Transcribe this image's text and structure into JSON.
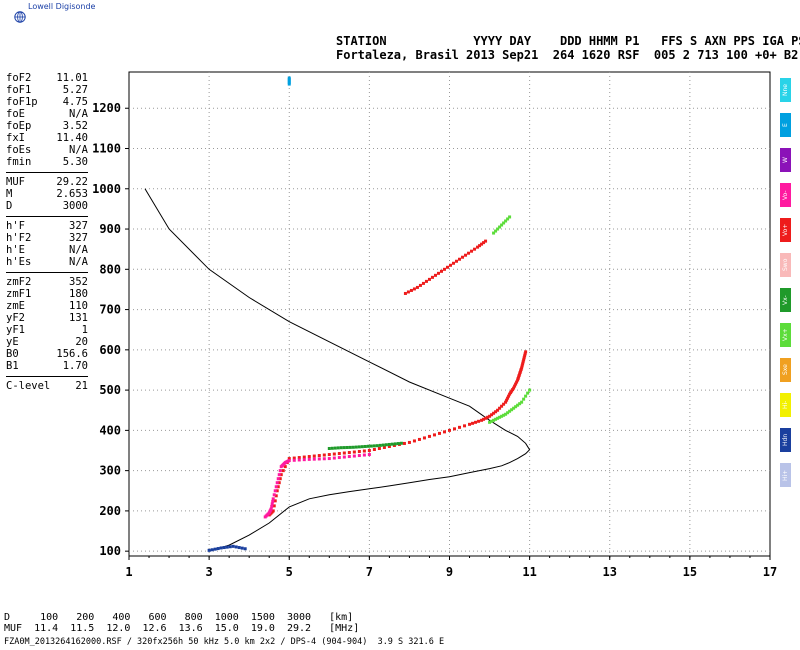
{
  "brand": "Lowell Digisonde",
  "header": {
    "line1": "STATION            YYYY DAY    DDD HHMM P1   FFS S AXN PPS IGA PS",
    "line2": "Fortaleza, Brasil 2013 Sep21  264 1620 RSF  005 2 713 100 +0+ B2"
  },
  "params": [
    [
      {
        "k": "foF2",
        "v": "11.01"
      },
      {
        "k": "foF1",
        "v": "5.27"
      },
      {
        "k": "foF1p",
        "v": "4.75"
      },
      {
        "k": "foE",
        "v": "N/A"
      },
      {
        "k": "foEp",
        "v": "3.52"
      },
      {
        "k": "fxI",
        "v": "11.40"
      },
      {
        "k": "foEs",
        "v": "N/A"
      },
      {
        "k": "fmin",
        "v": "5.30"
      }
    ],
    [
      {
        "k": "MUF",
        "v": "29.22"
      },
      {
        "k": "M",
        "v": "2.653"
      },
      {
        "k": "D",
        "v": "3000"
      }
    ],
    [
      {
        "k": "h'F",
        "v": "327"
      },
      {
        "k": "h'F2",
        "v": "327"
      },
      {
        "k": "h'E",
        "v": "N/A"
      },
      {
        "k": "h'Es",
        "v": "N/A"
      }
    ],
    [
      {
        "k": "zmF2",
        "v": "352"
      },
      {
        "k": "zmF1",
        "v": "180"
      },
      {
        "k": "zmE",
        "v": "110"
      },
      {
        "k": "yF2",
        "v": "131"
      },
      {
        "k": "yF1",
        "v": "1"
      },
      {
        "k": "yE",
        "v": "20"
      },
      {
        "k": "B0",
        "v": "156.6"
      },
      {
        "k": "B1",
        "v": "1.70"
      }
    ],
    [
      {
        "k": "C-level",
        "v": "21"
      }
    ]
  ],
  "legend": [
    {
      "label": "Nne",
      "color": "#29d3e8"
    },
    {
      "label": "E",
      "color": "#00a0e0"
    },
    {
      "label": "W",
      "color": "#8b12b8"
    },
    {
      "label": "Vo-",
      "color": "#ff1aa0"
    },
    {
      "label": "Vo+",
      "color": "#ee1c1c"
    },
    {
      "label": "Swo",
      "color": "#f9b9b9"
    },
    {
      "label": "Vx-",
      "color": "#1f9a2a"
    },
    {
      "label": "Vx+",
      "color": "#5cdc3a"
    },
    {
      "label": "Sxe",
      "color": "#f0a020"
    },
    {
      "label": "Hi-",
      "color": "#f2f000"
    },
    {
      "label": "Hdn",
      "color": "#1a3f9e"
    },
    {
      "label": "Hi+",
      "color": "#b9c3e8"
    }
  ],
  "footer": {
    "line1": "D     100   200   400   600   800  1000  1500  3000   [km]",
    "line2": "MUF  11.4  11.5  12.0  12.6  13.6  15.0  19.0  29.2   [MHz]",
    "filename": "FZA0M_2013264162000.RSF / 320fx256h 50 kHz 5.0 km 2x2 / DPS-4 (904-904)  3.9 S 321.6 E"
  },
  "chart_data": {
    "type": "scatter",
    "xlim": [
      1,
      17
    ],
    "ylim": [
      88,
      1290
    ],
    "xticks": [
      1,
      3,
      5,
      7,
      9,
      11,
      13,
      15,
      17
    ],
    "yticks": [
      100,
      200,
      300,
      400,
      500,
      600,
      700,
      800,
      900,
      1000,
      1100,
      1200
    ],
    "grid": true,
    "profile": {
      "x": [
        3.0,
        3.5,
        4.0,
        4.5,
        5.0,
        5.5,
        6.0,
        6.5,
        7.0,
        7.5,
        8.0,
        8.5,
        9.0,
        9.5,
        10.0,
        10.3,
        10.5,
        10.7,
        10.9,
        11.0,
        10.9,
        10.7,
        10.4,
        10.0,
        9.5,
        9.0,
        8.0,
        7.0,
        6.0,
        5.0,
        4.0,
        3.0,
        2.0,
        1.4
      ],
      "y": [
        100,
        115,
        140,
        170,
        210,
        230,
        240,
        248,
        255,
        262,
        270,
        278,
        285,
        295,
        305,
        312,
        320,
        330,
        342,
        352,
        368,
        385,
        400,
        425,
        460,
        480,
        520,
        570,
        620,
        670,
        730,
        800,
        900,
        1000
      ]
    },
    "traces": [
      {
        "name": "O-mode",
        "color": "#ee1c1c",
        "x": [
          4.5,
          4.6,
          4.7,
          4.8,
          5.0,
          5.5,
          6.0,
          6.5,
          7.0,
          7.5,
          8.0,
          8.5,
          9.0,
          9.5,
          9.8,
          10.0,
          10.2,
          10.4,
          10.5,
          10.6,
          10.7,
          10.75,
          10.8,
          10.85,
          10.9
        ],
        "y": [
          190,
          200,
          250,
          290,
          330,
          335,
          340,
          345,
          350,
          360,
          370,
          385,
          400,
          415,
          425,
          435,
          450,
          470,
          490,
          505,
          525,
          540,
          555,
          575,
          595
        ]
      },
      {
        "name": "O-mode low",
        "color": "#ff1aa0",
        "x": [
          4.4,
          4.5,
          4.55,
          4.6,
          4.7,
          4.8,
          4.9,
          5.0,
          5.5,
          6.0,
          6.5,
          7.0
        ],
        "y": [
          185,
          195,
          205,
          230,
          270,
          310,
          320,
          325,
          328,
          330,
          335,
          340
        ]
      },
      {
        "name": "X-mode",
        "color": "#1f9a2a",
        "x": [
          6.0,
          6.3,
          6.6,
          6.9,
          7.2,
          7.5,
          7.8
        ],
        "y": [
          355,
          357,
          358,
          360,
          362,
          365,
          368
        ]
      },
      {
        "name": "X-mode+",
        "color": "#5cdc3a",
        "x": [
          10.0,
          10.2,
          10.4,
          10.6,
          10.8,
          11.0
        ],
        "y": [
          420,
          430,
          440,
          455,
          470,
          500
        ]
      },
      {
        "name": "2nd hop",
        "color": "#ee1c1c",
        "x": [
          7.9,
          8.2,
          8.5,
          8.8,
          9.1,
          9.4,
          9.7,
          9.9
        ],
        "y": [
          740,
          755,
          775,
          795,
          815,
          835,
          855,
          870
        ]
      },
      {
        "name": "2nd hop X",
        "color": "#5cdc3a",
        "x": [
          10.1,
          10.3,
          10.5
        ],
        "y": [
          890,
          910,
          930
        ]
      },
      {
        "name": "E-layer",
        "color": "#1a3f9e",
        "x": [
          3.0,
          3.3,
          3.6,
          3.9
        ],
        "y": [
          102,
          108,
          112,
          106
        ]
      },
      {
        "name": "scatter",
        "color": "#00a0e0",
        "x": [
          5.0,
          5.0
        ],
        "y": [
          1260,
          1275
        ]
      }
    ]
  }
}
